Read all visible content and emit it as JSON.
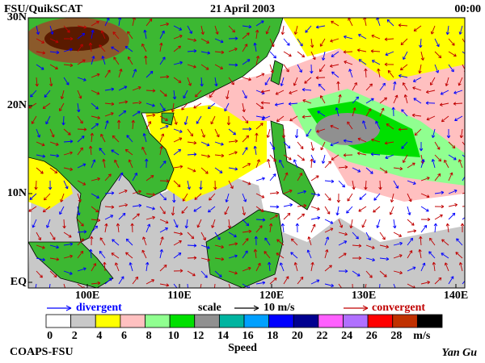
{
  "header": {
    "left": "FSU/QuikSCAT",
    "center": "21 April 2003",
    "right": "00:00"
  },
  "map": {
    "lat_labels": [
      "30N",
      "20N",
      "10N",
      "EQ"
    ],
    "lon_labels": [
      "100E",
      "110E",
      "120E",
      "130E",
      "140E"
    ]
  },
  "legend": {
    "divergent": "divergent",
    "scale": "scale",
    "scale_value": "10 m/s",
    "convergent": "convergent",
    "divergent_color": "#0000ff",
    "convergent_color": "#c00000"
  },
  "colorbar": {
    "colors": [
      "#ffffff",
      "#c8c8c8",
      "#ffff00",
      "#ffc0c0",
      "#90ff90",
      "#00e000",
      "#909090",
      "#00b4a0",
      "#00a0ff",
      "#0000ff",
      "#000090",
      "#ff60ff",
      "#b070ff",
      "#ff0000",
      "#c03000",
      "#000000"
    ],
    "labels": [
      "0",
      "2",
      "4",
      "6",
      "8",
      "10",
      "12",
      "14",
      "16",
      "18",
      "20",
      "22",
      "24",
      "26",
      "28"
    ],
    "unit": "m/s",
    "title": "Speed"
  },
  "footer": {
    "left": "COAPS-FSU",
    "right": "Yan Gu"
  }
}
